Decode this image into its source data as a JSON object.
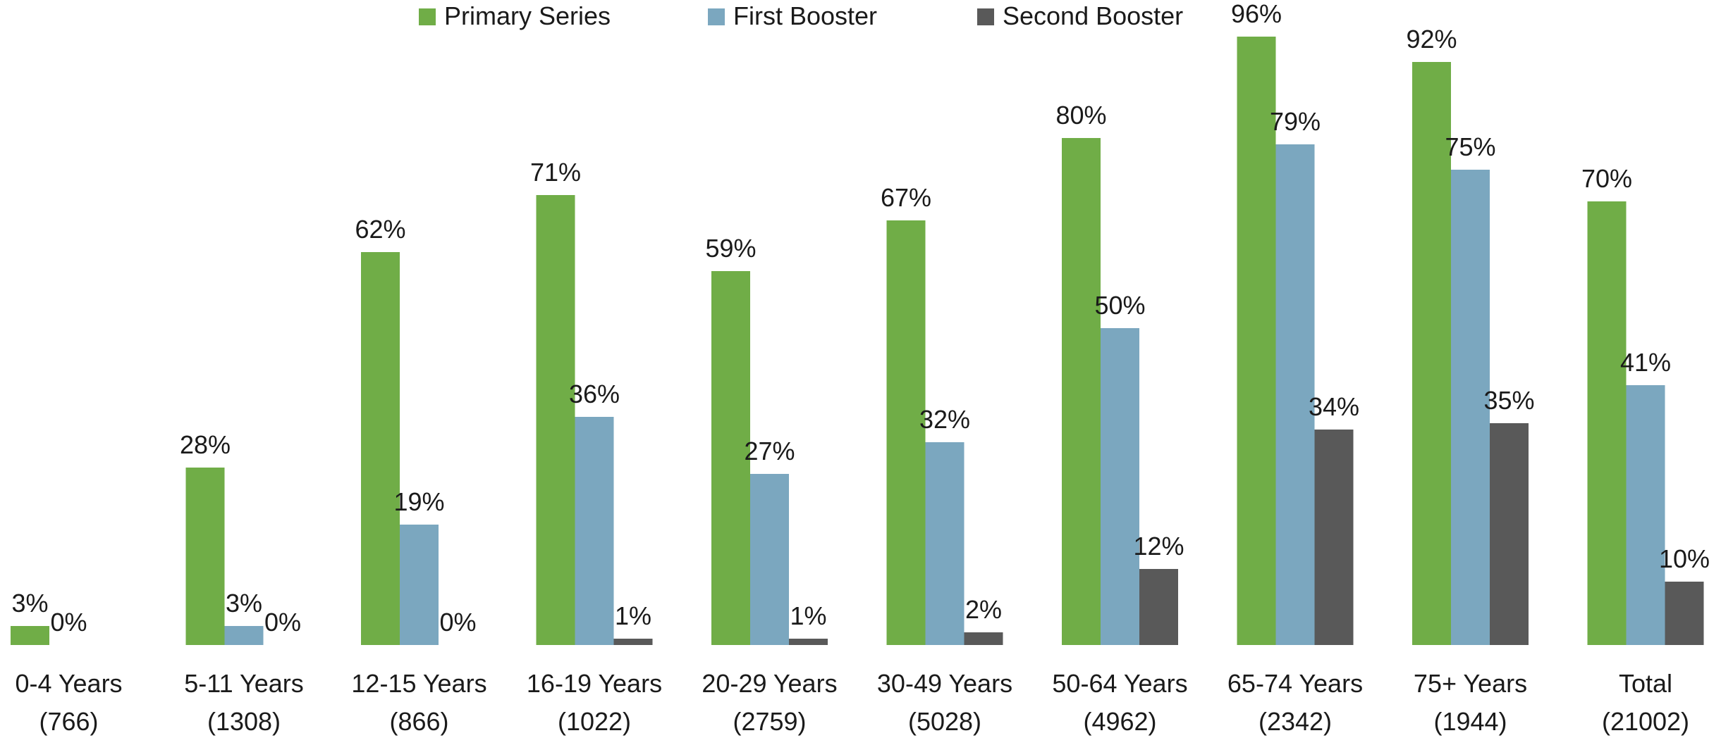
{
  "chart_data": {
    "type": "bar",
    "title": "",
    "xlabel": "",
    "ylabel": "",
    "ylim": [
      0,
      100
    ],
    "grid": false,
    "legend_position": "top-center",
    "value_format": "percent",
    "categories": [
      {
        "label": "0-4 Years",
        "sublabel": "(766)"
      },
      {
        "label": "5-11 Years",
        "sublabel": "(1308)"
      },
      {
        "label": "12-15 Years",
        "sublabel": "(866)"
      },
      {
        "label": "16-19 Years",
        "sublabel": "(1022)"
      },
      {
        "label": "20-29 Years",
        "sublabel": "(2759)"
      },
      {
        "label": "30-49 Years",
        "sublabel": "(5028)"
      },
      {
        "label": "50-64 Years",
        "sublabel": "(4962)"
      },
      {
        "label": "65-74 Years",
        "sublabel": "(2342)"
      },
      {
        "label": "75+ Years",
        "sublabel": "(1944)"
      },
      {
        "label": "Total",
        "sublabel": "(21002)"
      }
    ],
    "series": [
      {
        "name": "Primary Series",
        "color": "#70ad47",
        "values": [
          3,
          28,
          62,
          71,
          59,
          67,
          80,
          96,
          92,
          70
        ]
      },
      {
        "name": "First Booster",
        "color": "#7ba7bf",
        "values": [
          0,
          3,
          19,
          36,
          27,
          32,
          50,
          79,
          75,
          41
        ]
      },
      {
        "name": "Second Booster",
        "color": "#595959",
        "values": [
          null,
          0,
          0,
          1,
          1,
          2,
          12,
          34,
          35,
          10
        ]
      }
    ]
  }
}
